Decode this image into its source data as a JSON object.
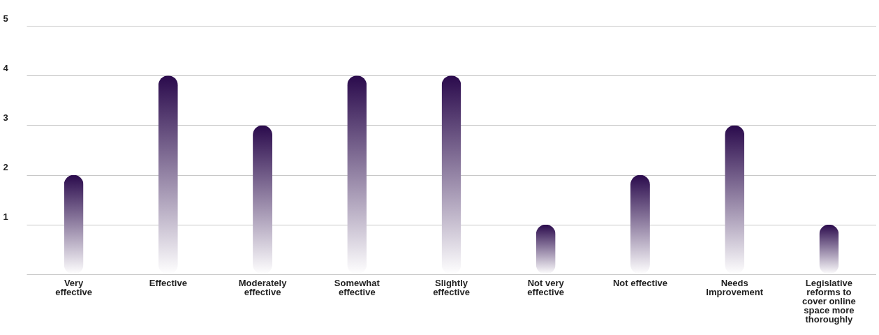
{
  "chart_data": {
    "type": "bar",
    "categories": [
      "Very effective",
      "Effective",
      "Moderately effective",
      "Somewhat effective",
      "Slightly effective",
      "Not very effective",
      "Not effective",
      "Needs Improvement",
      "Legislative reforms to cover online space more thoroughly"
    ],
    "values": [
      2,
      4,
      3,
      4,
      4,
      1,
      2,
      3,
      1
    ],
    "color": "#2a0a4c",
    "ylim": [
      0,
      5
    ],
    "yticks": [
      {
        "value": 0,
        "label": null
      },
      1,
      2,
      3,
      4,
      5
    ],
    "grid": "y"
  }
}
